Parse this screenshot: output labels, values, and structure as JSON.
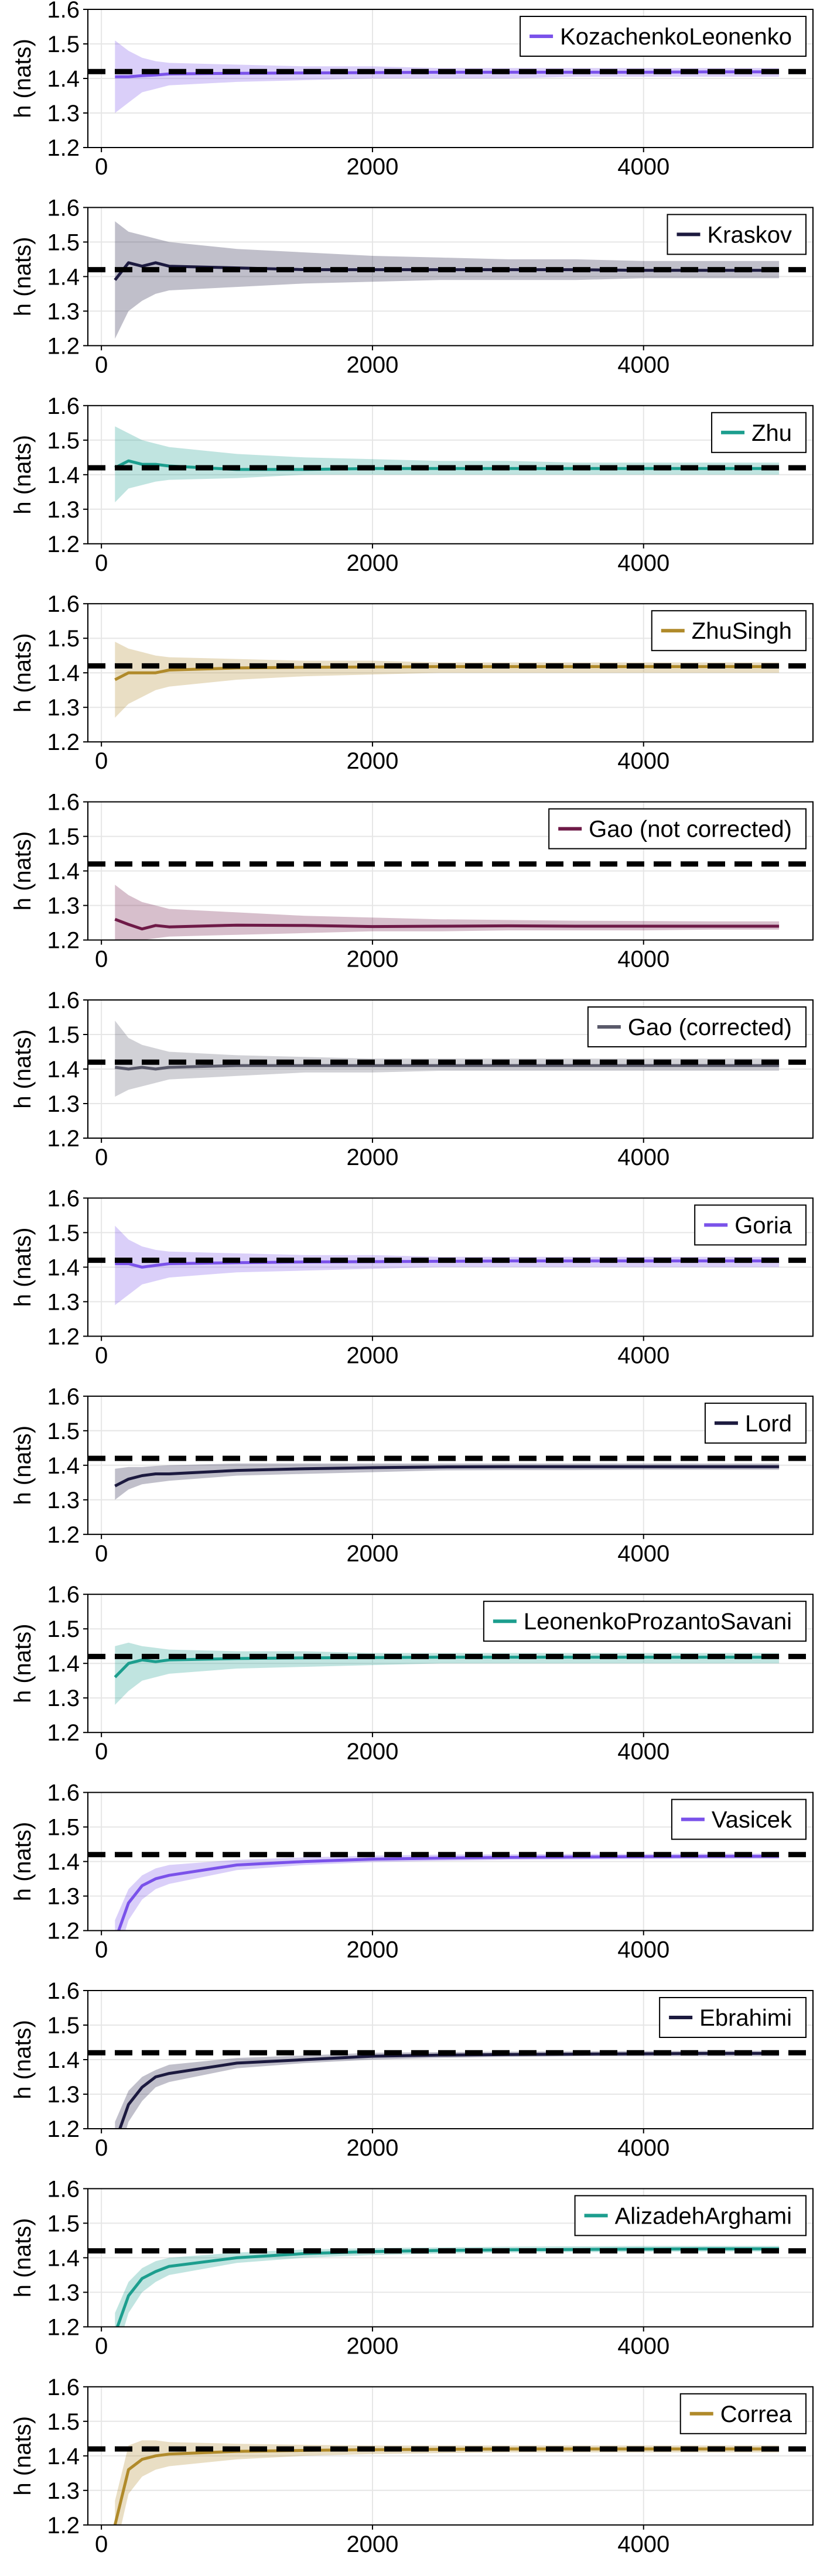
{
  "figure": {
    "ylabel": "h (nats)",
    "xticks": [
      0,
      2000,
      4000
    ],
    "yticks": [
      1.2,
      1.3,
      1.4,
      1.5,
      1.6
    ],
    "xlim": [
      -100,
      5250
    ],
    "ylim": [
      1.2,
      1.6
    ],
    "reference_value": 1.42,
    "grid": true,
    "legend_position": "top-right"
  },
  "chart_data": [
    {
      "type": "line",
      "series": [
        {
          "name": "KozachenkoLeonenko",
          "color": "#7a52ea",
          "x": [
            100,
            200,
            300,
            400,
            500,
            1000,
            1500,
            2000,
            2500,
            3000,
            3500,
            4000,
            4500,
            5000
          ],
          "y": [
            1.405,
            1.405,
            1.408,
            1.41,
            1.413,
            1.415,
            1.416,
            1.417,
            1.418,
            1.418,
            1.418,
            1.418,
            1.419,
            1.419
          ],
          "band_lower": [
            1.3,
            1.33,
            1.36,
            1.37,
            1.38,
            1.39,
            1.395,
            1.4,
            1.4,
            1.4,
            1.405,
            1.405,
            1.405,
            1.405
          ],
          "band_upper": [
            1.51,
            1.48,
            1.46,
            1.45,
            1.445,
            1.44,
            1.435,
            1.435,
            1.43,
            1.43,
            1.43,
            1.43,
            1.43,
            1.43
          ]
        }
      ]
    },
    {
      "type": "line",
      "series": [
        {
          "name": "Kraskov",
          "color": "#1c1a3f",
          "x": [
            100,
            200,
            300,
            400,
            500,
            1000,
            1500,
            2000,
            2500,
            3000,
            3500,
            4000,
            4500,
            5000
          ],
          "y": [
            1.39,
            1.44,
            1.43,
            1.44,
            1.43,
            1.425,
            1.42,
            1.42,
            1.42,
            1.42,
            1.42,
            1.418,
            1.418,
            1.418
          ],
          "band_lower": [
            1.22,
            1.3,
            1.33,
            1.35,
            1.36,
            1.37,
            1.38,
            1.385,
            1.39,
            1.39,
            1.39,
            1.395,
            1.395,
            1.395
          ],
          "band_upper": [
            1.56,
            1.53,
            1.52,
            1.51,
            1.5,
            1.48,
            1.47,
            1.46,
            1.455,
            1.45,
            1.45,
            1.445,
            1.445,
            1.445
          ]
        }
      ]
    },
    {
      "type": "line",
      "series": [
        {
          "name": "Zhu",
          "color": "#1c9e8e",
          "x": [
            100,
            200,
            300,
            400,
            500,
            1000,
            1500,
            2000,
            2500,
            3000,
            3500,
            4000,
            4500,
            5000
          ],
          "y": [
            1.42,
            1.44,
            1.43,
            1.43,
            1.425,
            1.415,
            1.415,
            1.418,
            1.418,
            1.418,
            1.418,
            1.418,
            1.418,
            1.418
          ],
          "band_lower": [
            1.32,
            1.36,
            1.37,
            1.38,
            1.385,
            1.39,
            1.4,
            1.4,
            1.4,
            1.4,
            1.4,
            1.4,
            1.4,
            1.4
          ],
          "band_upper": [
            1.54,
            1.52,
            1.5,
            1.49,
            1.48,
            1.46,
            1.45,
            1.445,
            1.44,
            1.44,
            1.435,
            1.435,
            1.435,
            1.435
          ]
        }
      ]
    },
    {
      "type": "line",
      "series": [
        {
          "name": "ZhuSingh",
          "color": "#b08a2a",
          "x": [
            100,
            200,
            300,
            400,
            500,
            1000,
            1500,
            2000,
            2500,
            3000,
            3500,
            4000,
            4500,
            5000
          ],
          "y": [
            1.38,
            1.4,
            1.4,
            1.4,
            1.408,
            1.414,
            1.416,
            1.417,
            1.418,
            1.418,
            1.418,
            1.418,
            1.418,
            1.418
          ],
          "band_lower": [
            1.27,
            1.31,
            1.33,
            1.35,
            1.36,
            1.38,
            1.39,
            1.395,
            1.4,
            1.4,
            1.4,
            1.4,
            1.4,
            1.4
          ],
          "band_upper": [
            1.49,
            1.47,
            1.46,
            1.45,
            1.445,
            1.44,
            1.435,
            1.435,
            1.43,
            1.43,
            1.43,
            1.43,
            1.43,
            1.43
          ]
        }
      ]
    },
    {
      "type": "line",
      "series": [
        {
          "name": "Gao (not corrected)",
          "color": "#6e1a47",
          "x": [
            100,
            200,
            300,
            400,
            500,
            1000,
            1500,
            2000,
            2500,
            3000,
            3500,
            4000,
            4500,
            5000
          ],
          "y": [
            1.26,
            1.245,
            1.232,
            1.242,
            1.238,
            1.243,
            1.242,
            1.239,
            1.24,
            1.241,
            1.24,
            1.24,
            1.24,
            1.24
          ],
          "band_lower": [
            1.18,
            1.19,
            1.2,
            1.205,
            1.21,
            1.215,
            1.22,
            1.225,
            1.225,
            1.228,
            1.228,
            1.228,
            1.23,
            1.23
          ],
          "band_upper": [
            1.36,
            1.33,
            1.31,
            1.3,
            1.29,
            1.28,
            1.27,
            1.265,
            1.26,
            1.258,
            1.256,
            1.255,
            1.254,
            1.254
          ]
        }
      ]
    },
    {
      "type": "line",
      "series": [
        {
          "name": "Gao (corrected)",
          "color": "#5a5a6a",
          "x": [
            100,
            200,
            300,
            400,
            500,
            1000,
            1500,
            2000,
            2500,
            3000,
            3500,
            4000,
            4500,
            5000
          ],
          "y": [
            1.405,
            1.4,
            1.405,
            1.4,
            1.405,
            1.41,
            1.41,
            1.41,
            1.41,
            1.41,
            1.41,
            1.41,
            1.41,
            1.41
          ],
          "band_lower": [
            1.32,
            1.34,
            1.35,
            1.36,
            1.37,
            1.38,
            1.39,
            1.39,
            1.395,
            1.395,
            1.395,
            1.395,
            1.395,
            1.395
          ],
          "band_upper": [
            1.54,
            1.49,
            1.47,
            1.46,
            1.45,
            1.44,
            1.435,
            1.43,
            1.43,
            1.43,
            1.43,
            1.43,
            1.43,
            1.43
          ]
        }
      ]
    },
    {
      "type": "line",
      "series": [
        {
          "name": "Goria",
          "color": "#7a52ea",
          "x": [
            100,
            200,
            300,
            400,
            500,
            1000,
            1500,
            2000,
            2500,
            3000,
            3500,
            4000,
            4500,
            5000
          ],
          "y": [
            1.41,
            1.41,
            1.4,
            1.405,
            1.41,
            1.413,
            1.415,
            1.416,
            1.417,
            1.418,
            1.418,
            1.418,
            1.418,
            1.418
          ],
          "band_lower": [
            1.29,
            1.32,
            1.35,
            1.36,
            1.37,
            1.385,
            1.39,
            1.395,
            1.4,
            1.4,
            1.4,
            1.4,
            1.4,
            1.4
          ],
          "band_upper": [
            1.52,
            1.48,
            1.46,
            1.45,
            1.445,
            1.44,
            1.435,
            1.435,
            1.43,
            1.43,
            1.43,
            1.43,
            1.43,
            1.43
          ]
        }
      ]
    },
    {
      "type": "line",
      "series": [
        {
          "name": "Lord",
          "color": "#1c1a3f",
          "x": [
            100,
            200,
            300,
            400,
            500,
            1000,
            1500,
            2000,
            2500,
            3000,
            3500,
            4000,
            4500,
            5000
          ],
          "y": [
            1.34,
            1.36,
            1.37,
            1.375,
            1.375,
            1.385,
            1.39,
            1.393,
            1.395,
            1.396,
            1.396,
            1.396,
            1.396,
            1.396
          ],
          "band_lower": [
            1.3,
            1.33,
            1.345,
            1.35,
            1.355,
            1.37,
            1.375,
            1.38,
            1.385,
            1.386,
            1.386,
            1.387,
            1.387,
            1.387
          ],
          "band_upper": [
            1.39,
            1.395,
            1.395,
            1.398,
            1.4,
            1.405,
            1.405,
            1.405,
            1.405,
            1.405,
            1.405,
            1.405,
            1.405,
            1.405
          ]
        }
      ]
    },
    {
      "type": "line",
      "series": [
        {
          "name": "LeonenkoProzantoSavani",
          "color": "#1c9e8e",
          "x": [
            100,
            200,
            300,
            400,
            500,
            1000,
            1500,
            2000,
            2500,
            3000,
            3500,
            4000,
            4500,
            5000
          ],
          "y": [
            1.36,
            1.4,
            1.41,
            1.405,
            1.41,
            1.414,
            1.416,
            1.417,
            1.418,
            1.418,
            1.418,
            1.418,
            1.418,
            1.418
          ],
          "band_lower": [
            1.28,
            1.32,
            1.35,
            1.36,
            1.37,
            1.385,
            1.39,
            1.395,
            1.4,
            1.4,
            1.4,
            1.4,
            1.4,
            1.4
          ],
          "band_upper": [
            1.45,
            1.46,
            1.45,
            1.445,
            1.44,
            1.435,
            1.435,
            1.43,
            1.43,
            1.43,
            1.43,
            1.43,
            1.43,
            1.43
          ]
        }
      ]
    },
    {
      "type": "line",
      "series": [
        {
          "name": "Vasicek",
          "color": "#7a52ea",
          "x": [
            100,
            200,
            300,
            400,
            500,
            1000,
            1500,
            2000,
            2500,
            3000,
            3500,
            4000,
            4500,
            5000
          ],
          "y": [
            1.17,
            1.28,
            1.33,
            1.35,
            1.36,
            1.39,
            1.4,
            1.407,
            1.41,
            1.412,
            1.413,
            1.414,
            1.415,
            1.415
          ],
          "band_lower": [
            1.1,
            1.23,
            1.29,
            1.32,
            1.335,
            1.375,
            1.39,
            1.398,
            1.402,
            1.405,
            1.406,
            1.407,
            1.408,
            1.408
          ],
          "band_upper": [
            1.23,
            1.32,
            1.36,
            1.38,
            1.39,
            1.405,
            1.412,
            1.417,
            1.42,
            1.421,
            1.422,
            1.422,
            1.423,
            1.423
          ]
        }
      ]
    },
    {
      "type": "line",
      "series": [
        {
          "name": "Ebrahimi",
          "color": "#1c1a3f",
          "x": [
            100,
            200,
            300,
            400,
            500,
            1000,
            1500,
            2000,
            2500,
            3000,
            3500,
            4000,
            4500,
            5000
          ],
          "y": [
            1.16,
            1.27,
            1.32,
            1.35,
            1.36,
            1.39,
            1.4,
            1.41,
            1.413,
            1.415,
            1.416,
            1.417,
            1.418,
            1.418
          ],
          "band_lower": [
            1.09,
            1.22,
            1.28,
            1.32,
            1.335,
            1.375,
            1.39,
            1.4,
            1.405,
            1.408,
            1.41,
            1.41,
            1.41,
            1.41
          ],
          "band_upper": [
            1.22,
            1.31,
            1.35,
            1.37,
            1.385,
            1.405,
            1.412,
            1.42,
            1.422,
            1.423,
            1.424,
            1.425,
            1.426,
            1.426
          ]
        }
      ]
    },
    {
      "type": "line",
      "series": [
        {
          "name": "AlizadehArghami",
          "color": "#1c9e8e",
          "x": [
            100,
            200,
            300,
            400,
            500,
            1000,
            1500,
            2000,
            2500,
            3000,
            3500,
            4000,
            4500,
            5000
          ],
          "y": [
            1.18,
            1.29,
            1.34,
            1.36,
            1.375,
            1.4,
            1.412,
            1.418,
            1.421,
            1.423,
            1.424,
            1.425,
            1.426,
            1.426
          ],
          "band_lower": [
            1.11,
            1.24,
            1.3,
            1.33,
            1.35,
            1.385,
            1.4,
            1.408,
            1.412,
            1.415,
            1.416,
            1.417,
            1.418,
            1.418
          ],
          "band_upper": [
            1.24,
            1.33,
            1.37,
            1.39,
            1.4,
            1.415,
            1.424,
            1.428,
            1.43,
            1.432,
            1.433,
            1.434,
            1.434,
            1.434
          ]
        }
      ]
    },
    {
      "type": "line",
      "series": [
        {
          "name": "Correa",
          "color": "#b08a2a",
          "x": [
            100,
            200,
            300,
            400,
            500,
            1000,
            1500,
            2000,
            2500,
            3000,
            3500,
            4000,
            4500,
            5000
          ],
          "y": [
            1.2,
            1.36,
            1.39,
            1.4,
            1.405,
            1.413,
            1.416,
            1.418,
            1.419,
            1.42,
            1.42,
            1.42,
            1.42,
            1.42
          ],
          "band_lower": [
            1.12,
            1.29,
            1.34,
            1.36,
            1.37,
            1.39,
            1.4,
            1.405,
            1.408,
            1.41,
            1.41,
            1.41,
            1.41,
            1.41
          ],
          "band_upper": [
            1.27,
            1.43,
            1.445,
            1.445,
            1.44,
            1.435,
            1.432,
            1.43,
            1.43,
            1.43,
            1.43,
            1.43,
            1.43,
            1.43
          ]
        }
      ]
    }
  ]
}
